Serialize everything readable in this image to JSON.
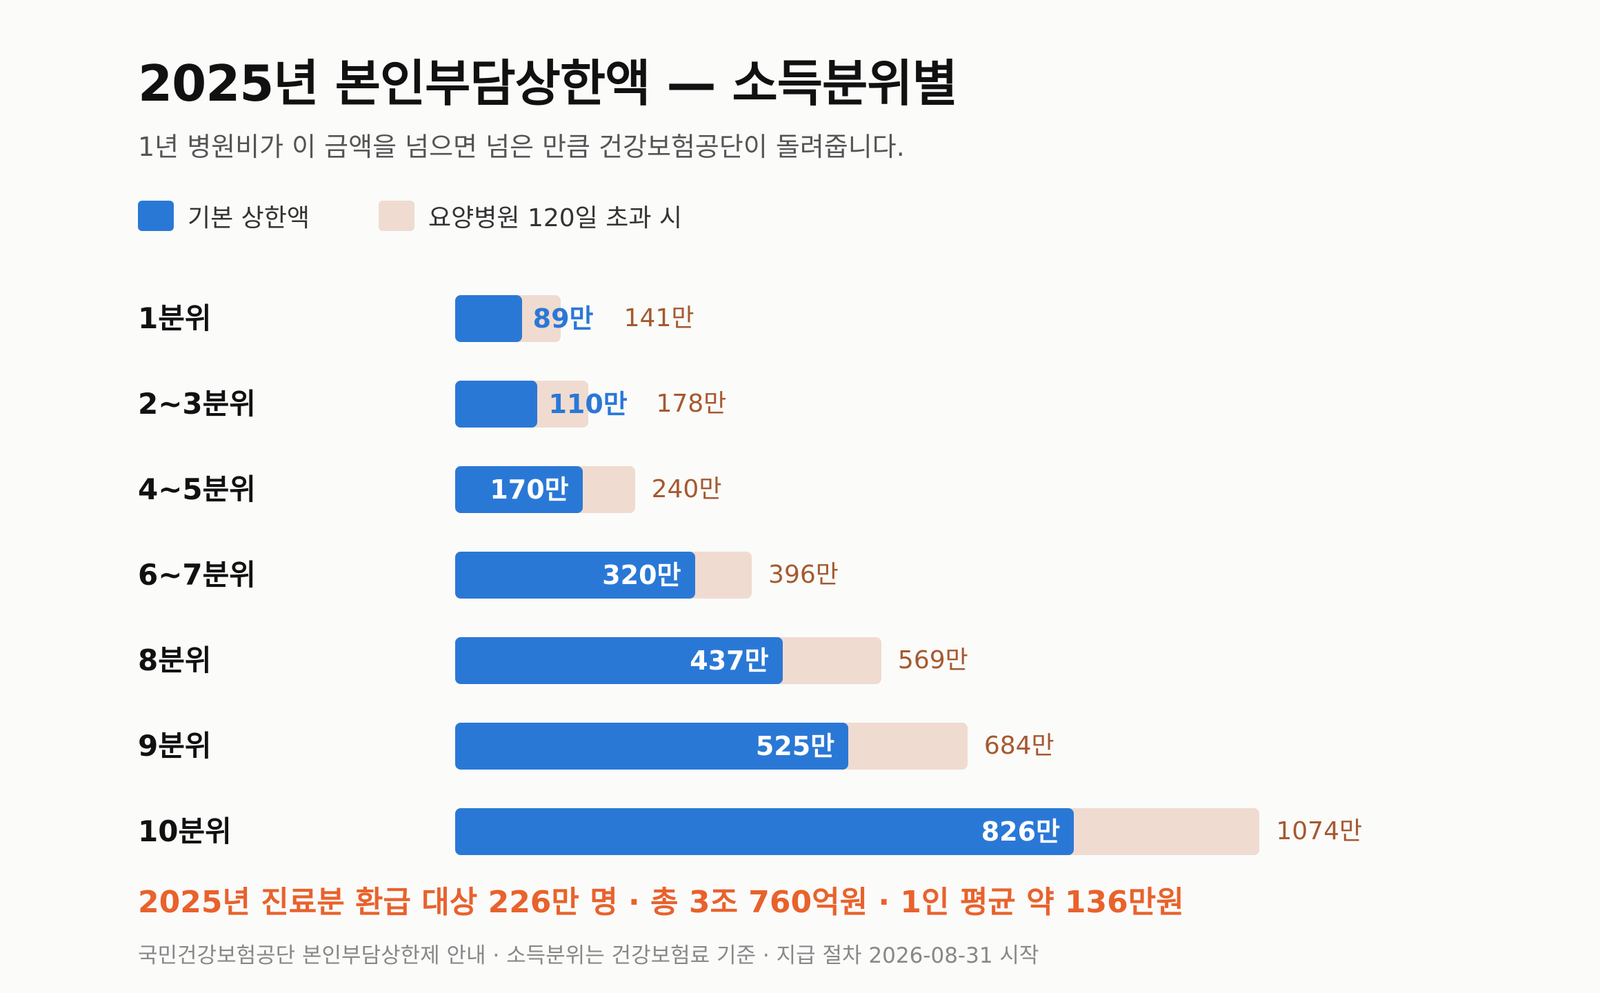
{
  "title": "2025년 본인부담상한액 — 소득분위별",
  "subtitle": "1년 병원비가 이 금액을 넘으면 넘은 만큼 건강보험공단이 돌려줍니다.",
  "colors": {
    "base": "#2a78d6",
    "extended": "#f0dbd0",
    "extended_text": "#a5592f",
    "summary": "#e8622c"
  },
  "chart_data": {
    "type": "bar",
    "orientation": "horizontal",
    "categories": [
      "1분위",
      "2~3분위",
      "4~5분위",
      "6~7분위",
      "8분위",
      "9분위",
      "10분위"
    ],
    "series": [
      {
        "name": "기본 상한액",
        "values": [
          89,
          110,
          170,
          320,
          437,
          525,
          826
        ],
        "labels": [
          "89만",
          "110만",
          "170만",
          "320만",
          "437만",
          "525만",
          "826만"
        ]
      },
      {
        "name": "요양병원 120일 초과 시",
        "values": [
          141,
          178,
          240,
          396,
          569,
          684,
          1074
        ],
        "labels": [
          "141만",
          "178만",
          "240만",
          "396만",
          "569만",
          "684만",
          "1074만"
        ]
      }
    ],
    "legend": "top-left",
    "grid": false
  },
  "summary": "2025년 진료분 환급 대상 226만 명 · 총 3조 760억원 · 1인 평균 약 136만원",
  "footnote": "국민건강보험공단 본인부담상한제 안내 · 소득분위는 건강보험료 기준 · 지급 절차 2026-08-31 시작"
}
